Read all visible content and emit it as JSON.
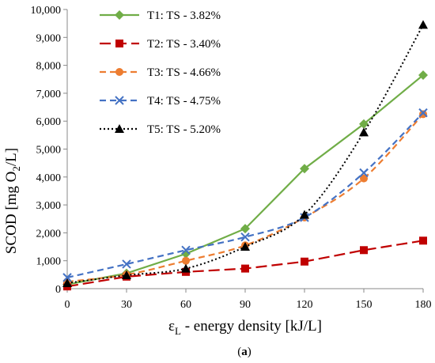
{
  "chart_data": {
    "type": "line",
    "x": [
      0,
      30,
      60,
      90,
      120,
      150,
      180
    ],
    "xticks": [
      "0",
      "30",
      "60",
      "90",
      "120",
      "150",
      "180"
    ],
    "yticks": [
      "0",
      "1,000",
      "2,000",
      "3,000",
      "4,000",
      "5,000",
      "6,000",
      "7,000",
      "8,000",
      "9,000",
      "10,000"
    ],
    "xlim": [
      0,
      180
    ],
    "ylim": [
      0,
      10000
    ],
    "xlabel": {
      "symbol": "ε",
      "subscript": "L",
      "rest": " - energy density [kJ/L]"
    },
    "ylabel": {
      "prefix": "SCOD [mg O",
      "subscript": "2",
      "suffix": "/L]"
    },
    "caption": {
      "open": "(",
      "bold": "a",
      "close": ")"
    },
    "grid": false,
    "legend": "top-left",
    "series": [
      {
        "name": "T1: TS - 3.82%",
        "color": "#70ad47",
        "dash": "solid",
        "marker": "diamond",
        "curve": "straight",
        "values": [
          150,
          550,
          1250,
          2150,
          4300,
          5900,
          7650
        ]
      },
      {
        "name": "T2: TS - 3.40%",
        "color": "#c00000",
        "dash": "longdash",
        "marker": "square",
        "curve": "straight",
        "values": [
          80,
          430,
          600,
          720,
          970,
          1380,
          1720
        ]
      },
      {
        "name": "T3: TS - 4.66%",
        "color": "#ed7d31",
        "dash": "dash",
        "marker": "circle",
        "curve": "smooth",
        "values": [
          250,
          500,
          1000,
          1550,
          2550,
          3950,
          6250
        ]
      },
      {
        "name": "T4: TS - 4.75%",
        "color": "#4472c4",
        "dash": "dash",
        "marker": "x",
        "curve": "smooth",
        "values": [
          400,
          880,
          1380,
          1850,
          2550,
          4150,
          6300
        ]
      },
      {
        "name": "T5: TS - 5.20%",
        "color": "#000000",
        "dash": "dot",
        "marker": "triangle",
        "curve": "smooth",
        "values": [
          200,
          480,
          720,
          1500,
          2650,
          5600,
          9450
        ]
      }
    ]
  }
}
